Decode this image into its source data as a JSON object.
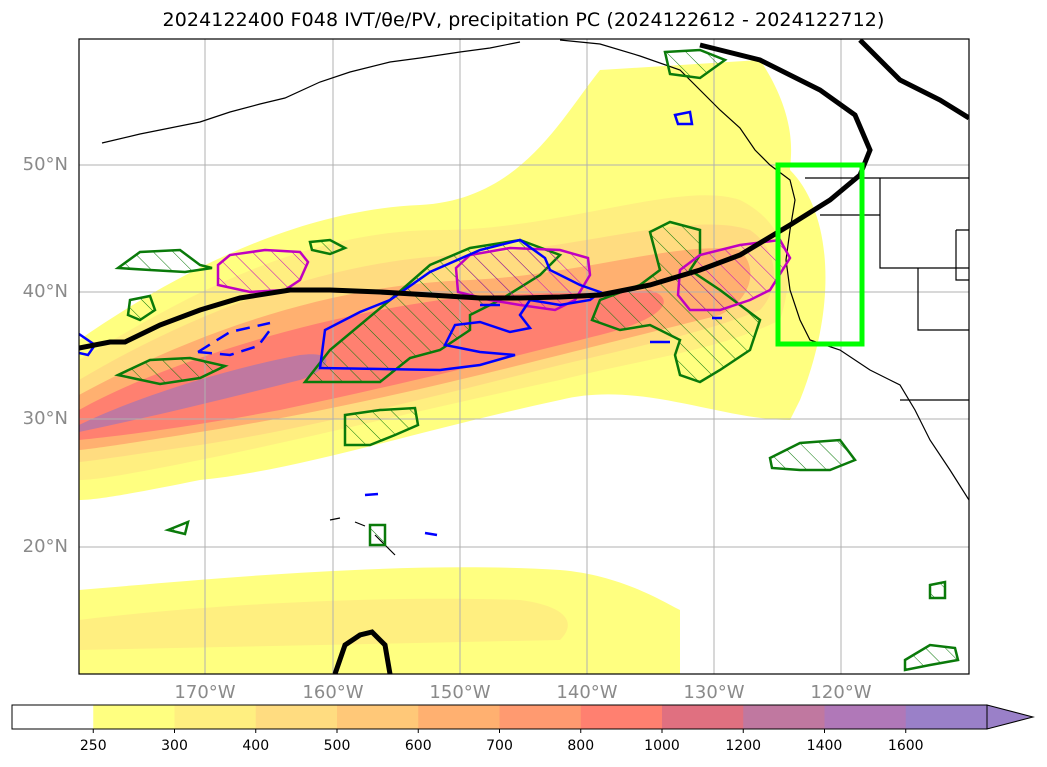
{
  "title_text": "2024122400 F048 IVT/θe/PV, precipitation PC (2024122612 - 2024122712)",
  "map": {
    "lat_labels": [
      "50°N",
      "40°N",
      "30°N",
      "20°N"
    ],
    "lon_labels": [
      "170°W",
      "160°W",
      "150°W",
      "140°W",
      "130°W",
      "120°W"
    ],
    "colors": {
      "ocean_bg": "#ffffff",
      "jet_line": "#000000",
      "pv_contour": "#0000ff",
      "theta_contour": "#c000c0",
      "precip_contour": "#0a7a0a",
      "box": "#00ff00",
      "grid": "#b0b0b0"
    }
  },
  "colorbar": {
    "levels": [
      "250",
      "300",
      "400",
      "500",
      "600",
      "700",
      "800",
      "1000",
      "1200",
      "1400",
      "1600"
    ],
    "colors": [
      "#ffffff",
      "#ffff80",
      "#ffef80",
      "#ffdc80",
      "#ffc878",
      "#ffb070",
      "#ff9a70",
      "#ff8070",
      "#e07080",
      "#c078a0",
      "#b078b8",
      "#9a80c8"
    ]
  }
}
